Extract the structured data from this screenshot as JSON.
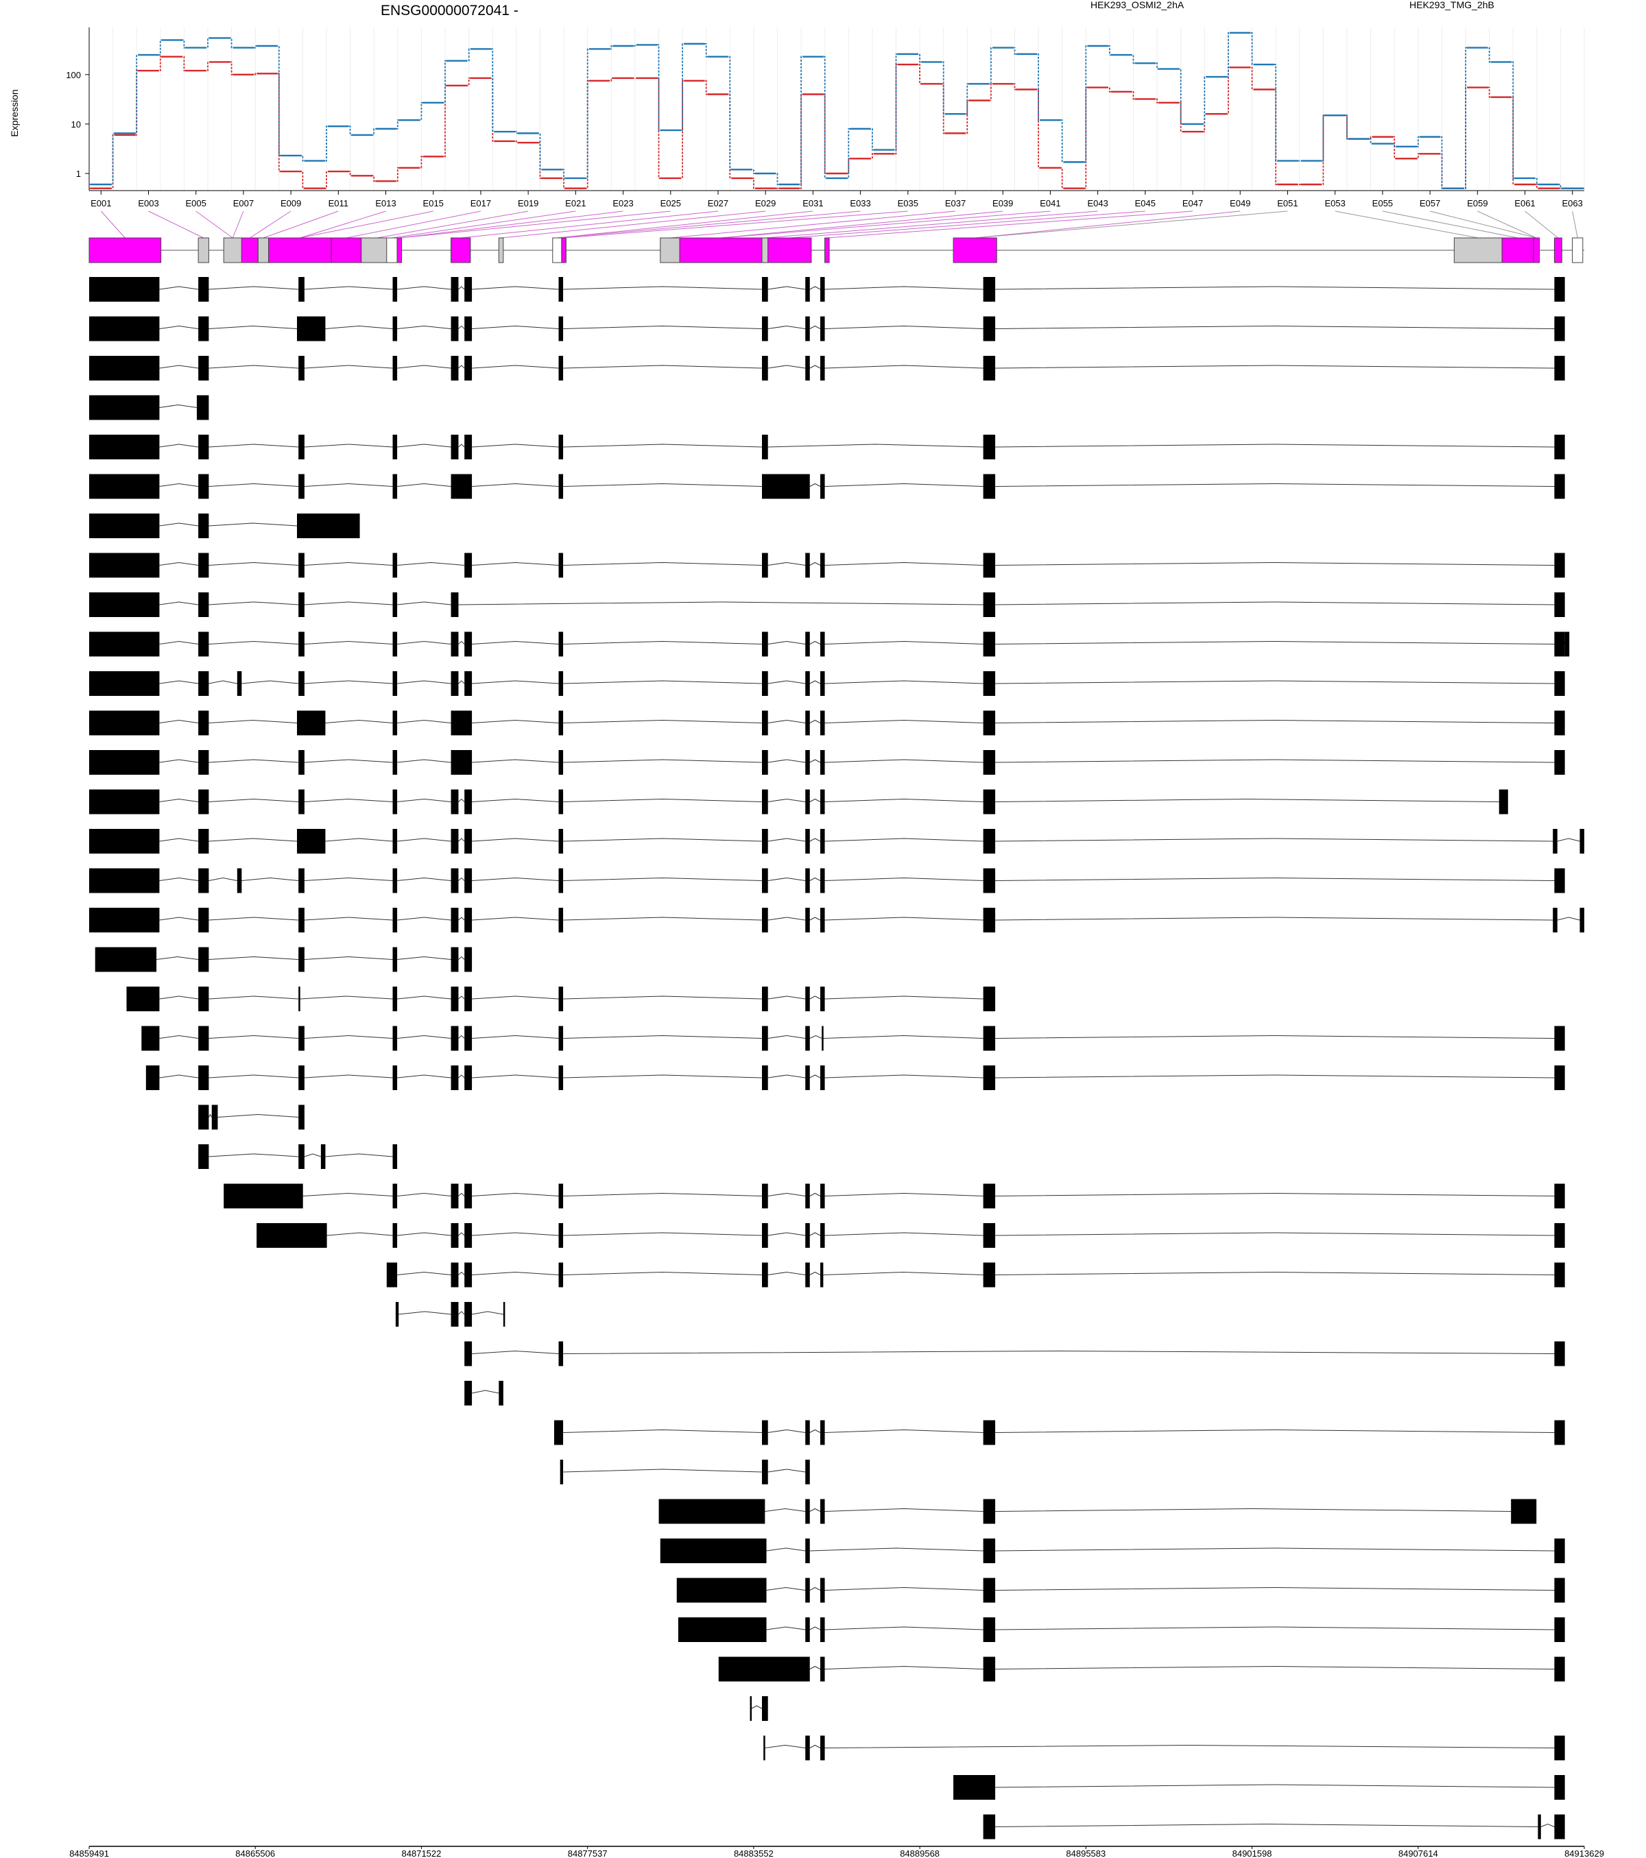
{
  "chart_data": {
    "type": "line",
    "title": "ENSG00000072041 -",
    "ylabel": "Expression",
    "y_scale": "log10",
    "ylim": [
      0.45,
      900
    ],
    "yticks": [
      "1",
      "10",
      "100"
    ],
    "exon_labels": [
      "E001",
      "E003",
      "E005",
      "E007",
      "E009",
      "E011",
      "E013",
      "E015",
      "E017",
      "E019",
      "E021",
      "E023",
      "E025",
      "E027",
      "E029",
      "E031",
      "E033",
      "E035",
      "E037",
      "E039",
      "E041",
      "E043",
      "E045",
      "E047",
      "E049",
      "E051",
      "E053",
      "E055",
      "E057",
      "E059",
      "E061",
      "E063"
    ],
    "genomic_axis_ticks": [
      "84859491",
      "84865506",
      "84871522",
      "84877537",
      "84883552",
      "84889568",
      "84895583",
      "84901598",
      "84907614",
      "84913629"
    ],
    "genomic_range": [
      84859491,
      84913629
    ],
    "series": [
      {
        "name": "HEK293_OSMI2_2hA",
        "color": "#d62728",
        "values": [
          0.5,
          6,
          120,
          230,
          120,
          180,
          100,
          105,
          1.1,
          0.5,
          1.1,
          0.9,
          0.7,
          1.3,
          2.2,
          60,
          85,
          4.5,
          4.2,
          0.8,
          0.5,
          75,
          85,
          85,
          0.8,
          75,
          40,
          0.8,
          0.5,
          0.5,
          40,
          1,
          2,
          2.5,
          160,
          65,
          6.5,
          30,
          65,
          50,
          1.3,
          0.5,
          55,
          45,
          32,
          27,
          7,
          16,
          140,
          50,
          0.6,
          0.6,
          15,
          5,
          5.5,
          2,
          2.5,
          0.5,
          55,
          35,
          0.6,
          0.5,
          0.5
        ]
      },
      {
        "name": "HEK293_TMG_2hB",
        "color": "#1f77b4",
        "values": [
          0.6,
          6.5,
          250,
          500,
          350,
          550,
          350,
          380,
          2.3,
          1.8,
          9,
          6,
          8,
          12,
          27,
          190,
          330,
          7,
          6.5,
          1.2,
          0.8,
          330,
          380,
          400,
          7.5,
          420,
          230,
          1.2,
          1,
          0.6,
          230,
          0.8,
          8,
          3,
          260,
          180,
          16,
          65,
          350,
          260,
          12,
          1.7,
          380,
          250,
          170,
          130,
          10,
          90,
          700,
          160,
          1.8,
          1.8,
          15,
          5,
          4,
          3.5,
          5.5,
          0.5,
          350,
          180,
          0.8,
          0.6,
          0.5
        ]
      }
    ],
    "n_exons": 63,
    "n_transcripts": 40
  }
}
